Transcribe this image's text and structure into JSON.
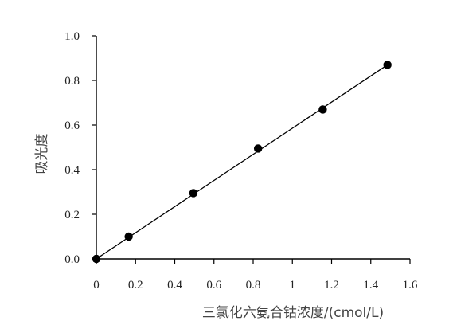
{
  "chart_data": {
    "type": "scatter",
    "title": "",
    "xlabel": "三氯化六氨合钴浓度/(cmol/L)",
    "ylabel": "吸光度",
    "xlim": [
      0,
      1.6
    ],
    "ylim": [
      0,
      1.0
    ],
    "xticks": [
      "0",
      "0.2",
      "0.4",
      "0.6",
      "0.8",
      "1",
      "1.2",
      "1.4",
      "1.6"
    ],
    "yticks": [
      "0.0",
      "0.2",
      "0.4",
      "0.6",
      "0.8",
      "1.0"
    ],
    "grid": false,
    "legend": "none",
    "series": [
      {
        "x": [
          0,
          0.165,
          0.495,
          0.825,
          1.155,
          1.485
        ],
        "y": [
          0.0,
          0.1,
          0.295,
          0.495,
          0.67,
          0.87
        ],
        "marker": "circle",
        "color": "#000000"
      }
    ],
    "trendline": {
      "from": [
        0,
        0
      ],
      "to": [
        1.485,
        0.87
      ],
      "color": "#000000"
    }
  }
}
